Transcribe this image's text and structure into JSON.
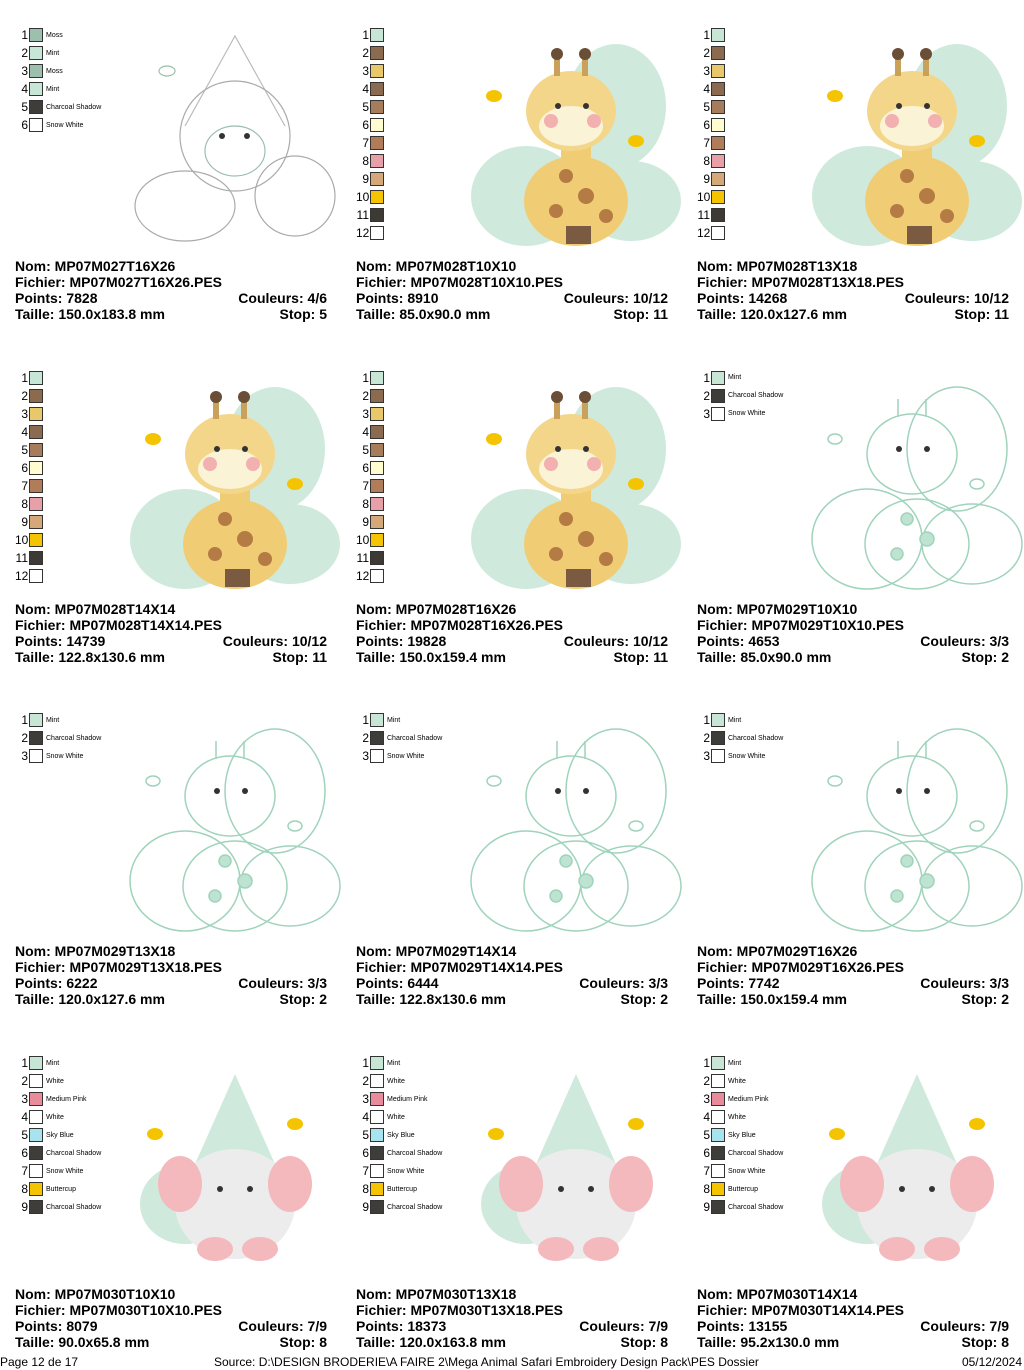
{
  "labels": {
    "nom": "Nom:",
    "fichier": "Fichier:",
    "points": "Points:",
    "couleurs": "Couleurs:",
    "taille": "Taille:",
    "stop": "Stop:"
  },
  "cards": [
    {
      "nom": "MP07M027T16X26",
      "fichier": "MP07M027T16X26.PES",
      "points": "7828",
      "couleurs": "4/6",
      "taille": "150.0x183.8 mm",
      "stop": "5",
      "colors": [
        {
          "number": "1",
          "color": "#9cbfae",
          "name": "Moss"
        },
        {
          "number": "2",
          "color": "#c7e6d6",
          "name": "Mint"
        },
        {
          "number": "3",
          "color": "#9cbfae",
          "name": "Moss"
        },
        {
          "number": "4",
          "color": "#c7e6d6",
          "name": "Mint"
        },
        {
          "number": "5",
          "color": "#3f3d3a",
          "name": "Charcoal Shadow"
        },
        {
          "number": "6",
          "color": "#ffffff",
          "name": "Snow White"
        }
      ]
    },
    {
      "nom": "MP07M028T10X10",
      "fichier": "MP07M028T10X10.PES",
      "points": "8910",
      "couleurs": "10/12",
      "taille": "85.0x90.0 mm",
      "stop": "11",
      "colors": [
        {
          "number": "1",
          "color": "#c7e6d6"
        },
        {
          "number": "2",
          "color": "#8b6a4e"
        },
        {
          "number": "3",
          "color": "#e8c86a"
        },
        {
          "number": "4",
          "color": "#8c6a50"
        },
        {
          "number": "5",
          "color": "#a67c5b"
        },
        {
          "number": "6",
          "color": "#fffccf"
        },
        {
          "number": "7",
          "color": "#b07c5a"
        },
        {
          "number": "8",
          "color": "#e8a0a8"
        },
        {
          "number": "9",
          "color": "#d4a878"
        },
        {
          "number": "10",
          "color": "#f5c400"
        },
        {
          "number": "11",
          "color": "#3d3a36"
        },
        {
          "number": "12",
          "color": "#ffffff"
        }
      ]
    },
    {
      "nom": "MP07M028T13X18",
      "fichier": "MP07M028T13X18.PES",
      "points": "14268",
      "couleurs": "10/12",
      "taille": "120.0x127.6 mm",
      "stop": "11",
      "colors": [
        {
          "number": "1",
          "color": "#c7e6d6"
        },
        {
          "number": "2",
          "color": "#8b6a4e"
        },
        {
          "number": "3",
          "color": "#e8c86a"
        },
        {
          "number": "4",
          "color": "#8c6a50"
        },
        {
          "number": "5",
          "color": "#a67c5b"
        },
        {
          "number": "6",
          "color": "#fffccf"
        },
        {
          "number": "7",
          "color": "#b07c5a"
        },
        {
          "number": "8",
          "color": "#e8a0a8"
        },
        {
          "number": "9",
          "color": "#d4a878"
        },
        {
          "number": "10",
          "color": "#f5c400"
        },
        {
          "number": "11",
          "color": "#3d3a36"
        },
        {
          "number": "12",
          "color": "#ffffff"
        }
      ]
    },
    {
      "nom": "MP07M028T14X14",
      "fichier": "MP07M028T14X14.PES",
      "points": "14739",
      "couleurs": "10/12",
      "taille": "122.8x130.6 mm",
      "stop": "11",
      "colors": [
        {
          "number": "1",
          "color": "#c7e6d6"
        },
        {
          "number": "2",
          "color": "#8b6a4e"
        },
        {
          "number": "3",
          "color": "#e8c86a"
        },
        {
          "number": "4",
          "color": "#8c6a50"
        },
        {
          "number": "5",
          "color": "#a67c5b"
        },
        {
          "number": "6",
          "color": "#fffccf"
        },
        {
          "number": "7",
          "color": "#b07c5a"
        },
        {
          "number": "8",
          "color": "#e8a0a8"
        },
        {
          "number": "9",
          "color": "#d4a878"
        },
        {
          "number": "10",
          "color": "#f5c400"
        },
        {
          "number": "11",
          "color": "#3d3a36"
        },
        {
          "number": "12",
          "color": "#ffffff"
        }
      ]
    },
    {
      "nom": "MP07M028T16X26",
      "fichier": "MP07M028T16X26.PES",
      "points": "19828",
      "couleurs": "10/12",
      "taille": "150.0x159.4 mm",
      "stop": "11",
      "colors": [
        {
          "number": "1",
          "color": "#c7e6d6"
        },
        {
          "number": "2",
          "color": "#8b6a4e"
        },
        {
          "number": "3",
          "color": "#e8c86a"
        },
        {
          "number": "4",
          "color": "#8c6a50"
        },
        {
          "number": "5",
          "color": "#a67c5b"
        },
        {
          "number": "6",
          "color": "#fffccf"
        },
        {
          "number": "7",
          "color": "#b07c5a"
        },
        {
          "number": "8",
          "color": "#e8a0a8"
        },
        {
          "number": "9",
          "color": "#d4a878"
        },
        {
          "number": "10",
          "color": "#f5c400"
        },
        {
          "number": "11",
          "color": "#3d3a36"
        },
        {
          "number": "12",
          "color": "#ffffff"
        }
      ]
    },
    {
      "nom": "MP07M029T10X10",
      "fichier": "MP07M029T10X10.PES",
      "points": "4653",
      "couleurs": "3/3",
      "taille": "85.0x90.0 mm",
      "stop": "2",
      "colors": [
        {
          "number": "1",
          "color": "#c7e6d6",
          "name": "Mint"
        },
        {
          "number": "2",
          "color": "#3f3d3a",
          "name": "Charcoal Shadow"
        },
        {
          "number": "3",
          "color": "#ffffff",
          "name": "Snow White"
        }
      ]
    },
    {
      "nom": "MP07M029T13X18",
      "fichier": "MP07M029T13X18.PES",
      "points": "6222",
      "couleurs": "3/3",
      "taille": "120.0x127.6 mm",
      "stop": "2",
      "colors": [
        {
          "number": "1",
          "color": "#c7e6d6",
          "name": "Mint"
        },
        {
          "number": "2",
          "color": "#3f3d3a",
          "name": "Charcoal Shadow"
        },
        {
          "number": "3",
          "color": "#ffffff",
          "name": "Snow White"
        }
      ]
    },
    {
      "nom": "MP07M029T14X14",
      "fichier": "MP07M029T14X14.PES",
      "points": "6444",
      "couleurs": "3/3",
      "taille": "122.8x130.6 mm",
      "stop": "2",
      "colors": [
        {
          "number": "1",
          "color": "#c7e6d6",
          "name": "Mint"
        },
        {
          "number": "2",
          "color": "#3f3d3a",
          "name": "Charcoal Shadow"
        },
        {
          "number": "3",
          "color": "#ffffff",
          "name": "Snow White"
        }
      ]
    },
    {
      "nom": "MP07M029T16X26",
      "fichier": "MP07M029T16X26.PES",
      "points": "7742",
      "couleurs": "3/3",
      "taille": "150.0x159.4 mm",
      "stop": "2",
      "colors": [
        {
          "number": "1",
          "color": "#c7e6d6",
          "name": "Mint"
        },
        {
          "number": "2",
          "color": "#3f3d3a",
          "name": "Charcoal Shadow"
        },
        {
          "number": "3",
          "color": "#ffffff",
          "name": "Snow White"
        }
      ]
    },
    {
      "nom": "MP07M030T10X10",
      "fichier": "MP07M030T10X10.PES",
      "points": "8079",
      "couleurs": "7/9",
      "taille": "90.0x65.8 mm",
      "stop": "8",
      "colors": [
        {
          "number": "1",
          "color": "#c7e6d6",
          "name": "Mint"
        },
        {
          "number": "2",
          "color": "#ffffff",
          "name": "White"
        },
        {
          "number": "3",
          "color": "#e88c9c",
          "name": "Medium Pink"
        },
        {
          "number": "4",
          "color": "#ffffff",
          "name": "White"
        },
        {
          "number": "5",
          "color": "#a8e4f0",
          "name": "Sky Blue"
        },
        {
          "number": "6",
          "color": "#3f3d3a",
          "name": "Charcoal Shadow"
        },
        {
          "number": "7",
          "color": "#ffffff",
          "name": "Snow White"
        },
        {
          "number": "8",
          "color": "#f5c400",
          "name": "Buttercup"
        },
        {
          "number": "9",
          "color": "#3f3d3a",
          "name": "Charcoal Shadow"
        }
      ]
    },
    {
      "nom": "MP07M030T13X18",
      "fichier": "MP07M030T13X18.PES",
      "points": "18373",
      "couleurs": "7/9",
      "taille": "120.0x163.8 mm",
      "stop": "8",
      "colors": [
        {
          "number": "1",
          "color": "#c7e6d6",
          "name": "Mint"
        },
        {
          "number": "2",
          "color": "#ffffff",
          "name": "White"
        },
        {
          "number": "3",
          "color": "#e88c9c",
          "name": "Medium Pink"
        },
        {
          "number": "4",
          "color": "#ffffff",
          "name": "White"
        },
        {
          "number": "5",
          "color": "#a8e4f0",
          "name": "Sky Blue"
        },
        {
          "number": "6",
          "color": "#3f3d3a",
          "name": "Charcoal Shadow"
        },
        {
          "number": "7",
          "color": "#ffffff",
          "name": "Snow White"
        },
        {
          "number": "8",
          "color": "#f5c400",
          "name": "Buttercup"
        },
        {
          "number": "9",
          "color": "#3f3d3a",
          "name": "Charcoal Shadow"
        }
      ]
    },
    {
      "nom": "MP07M030T14X14",
      "fichier": "MP07M030T14X14.PES",
      "points": "13155",
      "couleurs": "7/9",
      "taille": "95.2x130.0 mm",
      "stop": "8",
      "colors": [
        {
          "number": "1",
          "color": "#c7e6d6",
          "name": "Mint"
        },
        {
          "number": "2",
          "color": "#ffffff",
          "name": "White"
        },
        {
          "number": "3",
          "color": "#e88c9c",
          "name": "Medium Pink"
        },
        {
          "number": "4",
          "color": "#ffffff",
          "name": "White"
        },
        {
          "number": "5",
          "color": "#a8e4f0",
          "name": "Sky Blue"
        },
        {
          "number": "6",
          "color": "#3f3d3a",
          "name": "Charcoal Shadow"
        },
        {
          "number": "7",
          "color": "#ffffff",
          "name": "Snow White"
        },
        {
          "number": "8",
          "color": "#f5c400",
          "name": "Buttercup"
        },
        {
          "number": "9",
          "color": "#3f3d3a",
          "name": "Charcoal Shadow"
        }
      ]
    }
  ],
  "footer": {
    "page": "Page 12 de 17",
    "source": "Source: D:\\DESIGN BRODERIE\\A FAIRE 2\\Mega Animal Safari Embroidery Design Pack\\PES Dossier",
    "date": "05/12/2024"
  }
}
